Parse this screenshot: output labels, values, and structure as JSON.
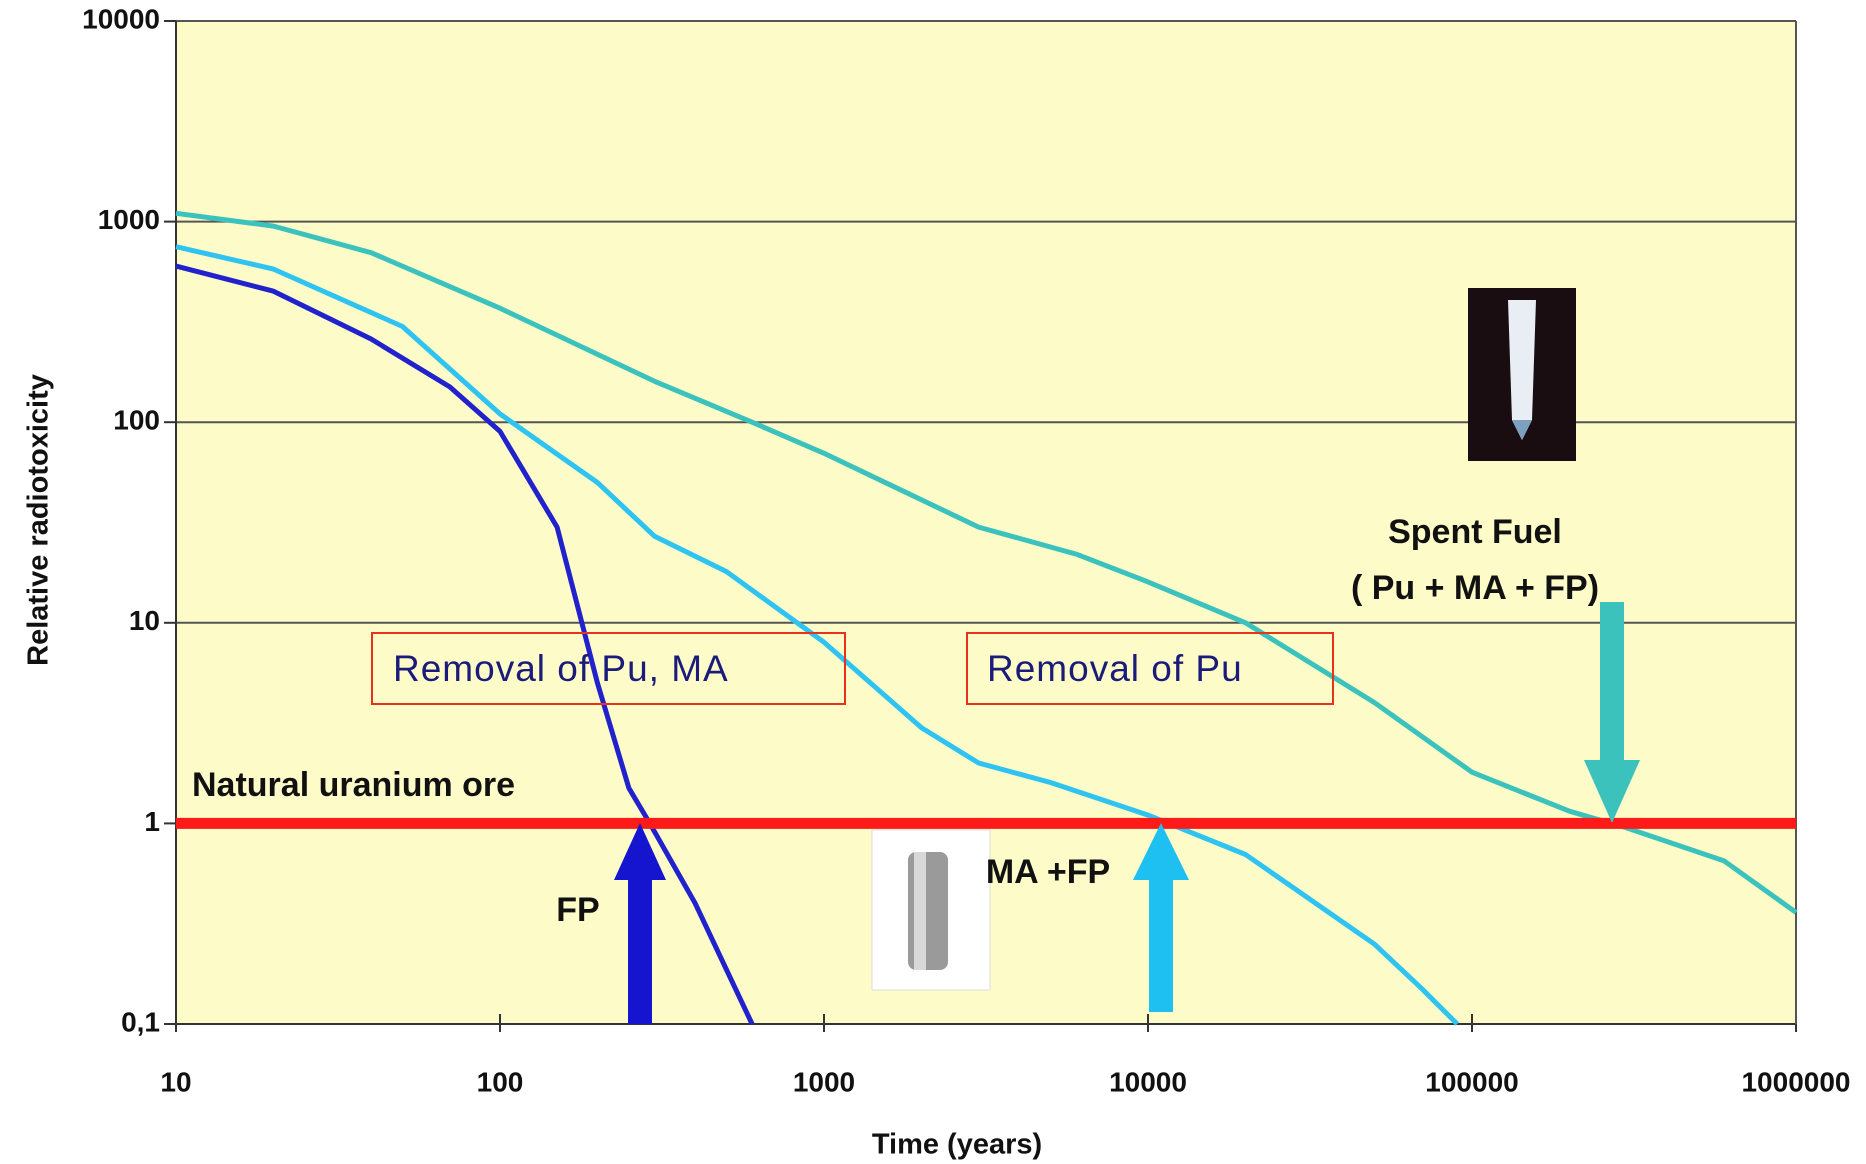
{
  "chart_data": {
    "type": "line",
    "x_label": "Time (years)",
    "y_label": "Relative radiotoxicity",
    "xscale": "log",
    "yscale": "log",
    "xlim": [
      10,
      1000000
    ],
    "ylim": [
      0.1,
      10000
    ],
    "xticks": [
      10,
      100,
      1000,
      10000,
      100000,
      1000000
    ],
    "yticks": [
      {
        "value": 0.1,
        "label": "0,1"
      },
      1,
      10,
      100,
      1000,
      10000
    ],
    "grid": true,
    "background": "#fdfcc9",
    "series": [
      {
        "color": "#3cc2bc",
        "x": [
          10,
          20,
          40,
          100,
          300,
          600,
          1000,
          3000,
          6000,
          10000,
          20000,
          50000,
          100000,
          200000,
          300000,
          600000,
          1000000
        ],
        "values": [
          1100,
          950,
          700,
          370,
          160,
          100,
          70,
          30,
          22,
          16,
          10,
          4,
          1.8,
          1.15,
          0.95,
          0.65,
          0.36
        ]
      },
      {
        "color": "#2ec3f0",
        "x": [
          10,
          20,
          50,
          100,
          200,
          300,
          500,
          1000,
          2000,
          3000,
          5000,
          10000,
          20000,
          50000,
          70000,
          90000
        ],
        "values": [
          750,
          580,
          300,
          110,
          50,
          27,
          18,
          8,
          3,
          2,
          1.6,
          1.1,
          0.7,
          0.25,
          0.15,
          0.1
        ]
      },
      {
        "color": "#2222cc",
        "x": [
          10,
          20,
          40,
          70,
          100,
          150,
          200,
          250,
          290,
          400,
          600
        ],
        "values": [
          600,
          450,
          260,
          150,
          90,
          30,
          5,
          1.5,
          1,
          0.4,
          0.1
        ]
      }
    ],
    "reference_line": {
      "value": 1,
      "label": "Natural uranium ore",
      "color": "#ff1a1a"
    },
    "annotations": [
      "FP",
      "MA +FP",
      "Spent Fuel",
      "( Pu + MA + FP)",
      "Removal of Pu, MA",
      "Removal of Pu"
    ]
  }
}
